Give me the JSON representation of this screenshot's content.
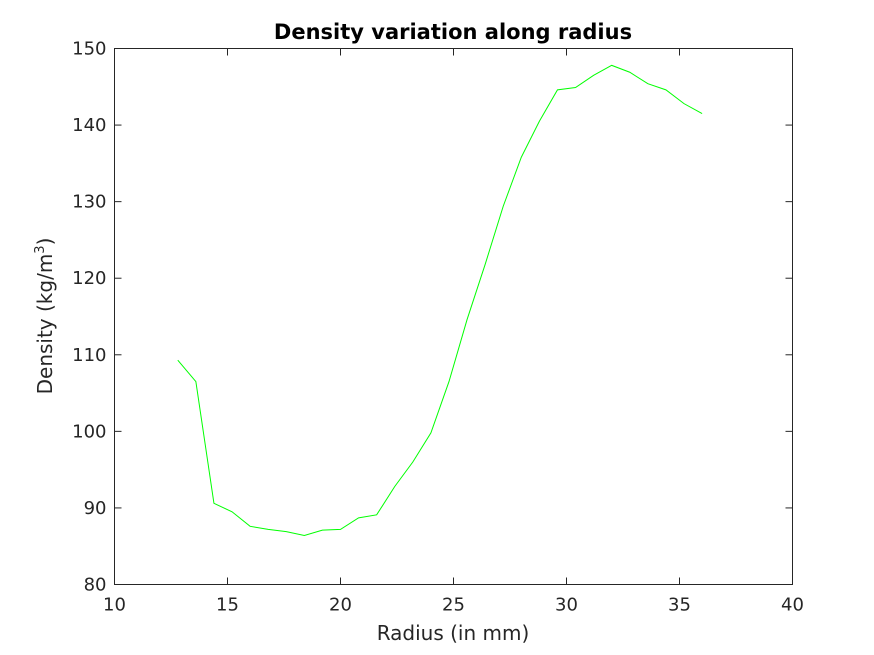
{
  "chart_data": {
    "type": "line",
    "title": "Density variation along radius",
    "xlabel": "Radius (in mm)",
    "ylabel": "Density (kg/m",
    "ylabel_superscript": "3",
    "ylabel_suffix": ")",
    "xlim": [
      10,
      40
    ],
    "ylim": [
      80,
      150
    ],
    "xticks": [
      10,
      15,
      20,
      25,
      30,
      35,
      40
    ],
    "yticks": [
      80,
      90,
      100,
      110,
      120,
      130,
      140,
      150
    ],
    "grid": false,
    "legend": "none",
    "series": [
      {
        "color": "#00ff00",
        "x": [
          12.8,
          13.6,
          14.4,
          15.2,
          16.0,
          16.8,
          17.6,
          18.4,
          19.2,
          20.0,
          20.8,
          21.6,
          22.4,
          23.2,
          24.0,
          24.8,
          25.6,
          26.4,
          27.2,
          28.0,
          28.8,
          29.6,
          30.4,
          31.2,
          32.0,
          32.8,
          33.6,
          34.4,
          35.2,
          36.0
        ],
        "y": [
          109.3,
          106.5,
          90.6,
          89.5,
          87.6,
          87.2,
          86.9,
          86.4,
          87.1,
          87.2,
          88.7,
          89.1,
          92.8,
          96.0,
          99.8,
          106.5,
          114.6,
          121.8,
          129.4,
          135.8,
          140.5,
          144.6,
          144.9,
          146.5,
          147.8,
          146.9,
          145.4,
          144.6,
          142.8,
          141.5
        ]
      }
    ]
  }
}
